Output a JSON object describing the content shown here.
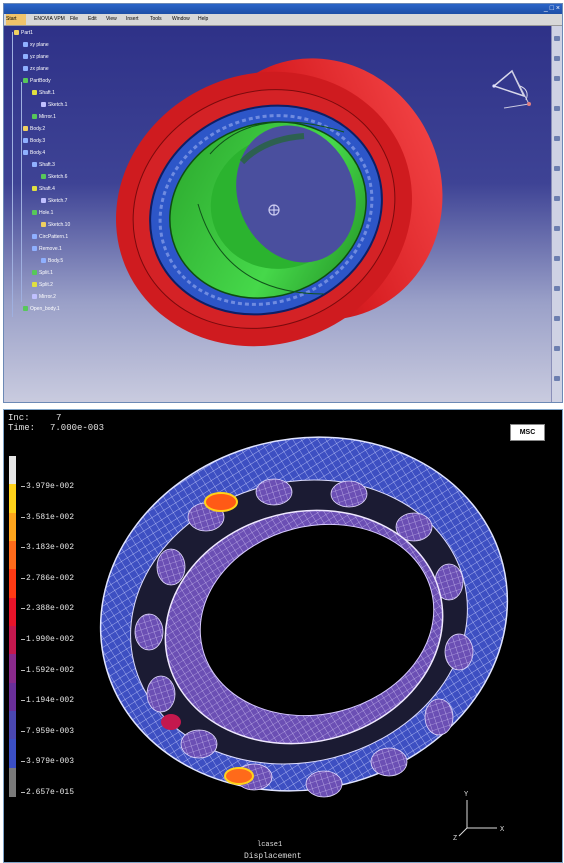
{
  "cad": {
    "menu": [
      "Start",
      "ENOVIA VPM",
      "File",
      "Edit",
      "View",
      "Insert",
      "Tools",
      "Window",
      "Help"
    ],
    "window_buttons": "_ □ ×",
    "tree": [
      {
        "label": "Part1",
        "indent": 0
      },
      {
        "label": "xy plane",
        "indent": 1
      },
      {
        "label": "yz plane",
        "indent": 1
      },
      {
        "label": "zx plane",
        "indent": 1
      },
      {
        "label": "PartBody",
        "indent": 1
      },
      {
        "label": "Shaft.1",
        "indent": 2
      },
      {
        "label": "Sketch.1",
        "indent": 3
      },
      {
        "label": "Mirror.1",
        "indent": 2
      },
      {
        "label": "Body.2",
        "indent": 1
      },
      {
        "label": "Body.3",
        "indent": 1
      },
      {
        "label": "Body.4",
        "indent": 1
      },
      {
        "label": "Shaft.3",
        "indent": 2
      },
      {
        "label": "Sketch.6",
        "indent": 3
      },
      {
        "label": "Shaft.4",
        "indent": 2
      },
      {
        "label": "Sketch.7",
        "indent": 3
      },
      {
        "label": "Hole.1",
        "indent": 2
      },
      {
        "label": "Sketch.10",
        "indent": 3
      },
      {
        "label": "CircPattern.1",
        "indent": 2
      },
      {
        "label": "Remove.1",
        "indent": 2
      },
      {
        "label": "Body.5",
        "indent": 3
      },
      {
        "label": "Split.1",
        "indent": 2
      },
      {
        "label": "Split.2",
        "indent": 2
      },
      {
        "label": "Mirror.2",
        "indent": 2
      },
      {
        "label": "Open_body.1",
        "indent": 1
      }
    ],
    "colors": {
      "outer_ring": "#e0262a",
      "cage": "#2d56c8",
      "inner_ring": "#33c837",
      "background_top": "#2c2f86"
    }
  },
  "fea": {
    "inc_label": "Inc:",
    "inc_value": "7",
    "time_label": "Time:",
    "time_value": "7.000e-003",
    "logo": "MSC",
    "colorbar_labels": [
      "3.979e-002",
      "3.581e-002",
      "3.183e-002",
      "2.786e-002",
      "2.388e-002",
      "1.990e-002",
      "1.592e-002",
      "1.194e-002",
      "7.959e-003",
      "3.979e-003",
      "2.657e-015"
    ],
    "colorbar_colors": [
      "#e6e6e6",
      "#ffd21a",
      "#ffa51c",
      "#ff6a1a",
      "#ff3a14",
      "#e8142a",
      "#c4184e",
      "#8a2a8c",
      "#6a2f9a",
      "#4a47b0",
      "#3b4fc4",
      "#7a7a7a"
    ],
    "axis_labels": {
      "y": "Y",
      "x": "X",
      "z": "Z"
    },
    "loadcase": "lcase1",
    "quantity": "Displacement"
  }
}
